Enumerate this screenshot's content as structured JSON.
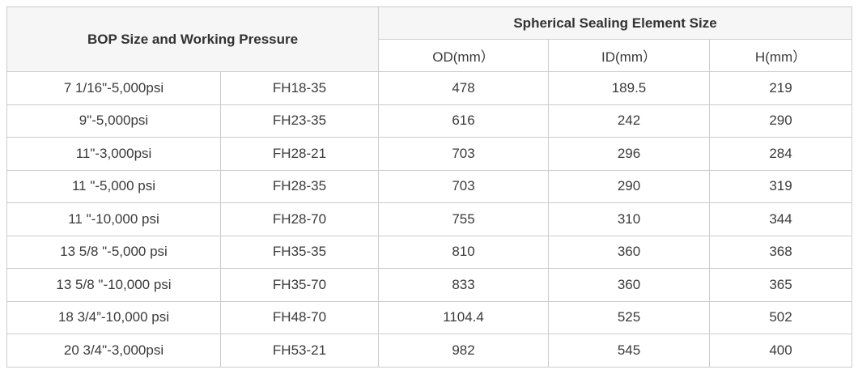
{
  "chart_data": {
    "type": "table",
    "header": {
      "left_group_title": "BOP Size and Working Pressure",
      "right_group_title": "Spherical Sealing Element Size",
      "sub_columns": [
        "OD(mm）",
        "ID(mm）",
        "H(mm）"
      ]
    },
    "rows": [
      [
        "7 1/16\"-5,000psi",
        "FH18-35",
        "478",
        "189.5",
        "219"
      ],
      [
        "9\"-5,000psi",
        "FH23-35",
        "616",
        "242",
        "290"
      ],
      [
        "11\"-3,000psi",
        "FH28-21",
        "703",
        "296",
        "284"
      ],
      [
        "11 \"-5,000 psi",
        "FH28-35",
        "703",
        "290",
        "319"
      ],
      [
        "11 \"-10,000 psi",
        "FH28-70",
        "755",
        "310",
        "344"
      ],
      [
        "13 5/8 \"-5,000 psi",
        "FH35-35",
        "810",
        "360",
        "368"
      ],
      [
        "13 5/8 \"-10,000 psi",
        "FH35-70",
        "833",
        "360",
        "365"
      ],
      [
        "18 3/4”-10,000 psi",
        "FH48-70",
        "1104.4",
        "525",
        "502"
      ],
      [
        "20 3/4\"-3,000psi",
        "FH53-21",
        "982",
        "545",
        "400"
      ]
    ],
    "layout": {
      "left_group_spans_columns": 2,
      "right_group_spans_columns": 3,
      "grid": "on",
      "row_count": 9
    },
    "colors": {
      "header_bg": "#f6f6f7",
      "border": "#cccccc",
      "text": "#3a3a3a",
      "header_text": "#333333",
      "row_bg": "#ffffff"
    }
  }
}
